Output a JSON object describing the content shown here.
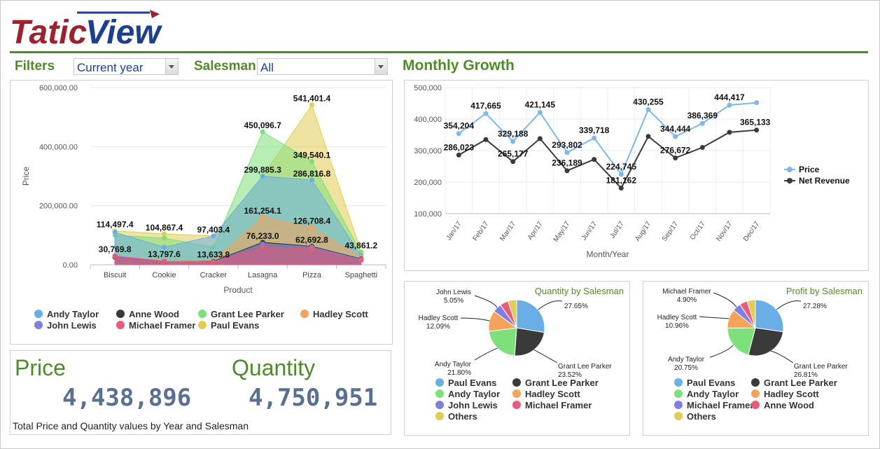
{
  "brand": {
    "logo_text": "TaticView"
  },
  "filters": {
    "label": "Filters",
    "period_value": "Current year",
    "salesman_label": "Salesman",
    "salesman_value": "All"
  },
  "colors": {
    "green": "#4f8a2b",
    "andy_taylor": "#6aaee8",
    "anne_wood": "#3a3a3a",
    "grant_lee_parker": "#7ee07a",
    "hadley_scott": "#f5a25a",
    "john_lewis": "#7f7fe0",
    "michael_framer": "#ea5a7a",
    "paul_evans": "#e1cc55"
  },
  "area_chart": {
    "chart_data": {
      "type": "area",
      "categories": [
        "Biscuit",
        "Cookie",
        "Cracker",
        "Lasagna",
        "Pizza",
        "Spaghetti"
      ],
      "xlabel": "Product",
      "ylabel": "Price",
      "ylim": [
        0,
        600000
      ],
      "yticks": [
        "0.00",
        "200,000.00",
        "400,000.00",
        "600,000.00"
      ],
      "series": [
        {
          "name": "Paul Evans",
          "color": "#e1cc55",
          "values": [
            114497.4,
            104867.4,
            97403.4,
            299885.3,
            541401.4,
            43861.2
          ]
        },
        {
          "name": "Grant Lee Parker",
          "color": "#7ee07a",
          "values": [
            100000,
            90000,
            60000,
            450096.7,
            349540.1,
            40000
          ]
        },
        {
          "name": "Andy Taylor",
          "color": "#6aaee8",
          "values": [
            110000,
            60000,
            97403.4,
            299885.3,
            286816.8,
            30000
          ]
        },
        {
          "name": "Hadley Scott",
          "color": "#f5a25a",
          "values": [
            30769.8,
            13797.6,
            13633.8,
            161254.1,
            126708.4,
            25000
          ]
        },
        {
          "name": "Anne Wood",
          "color": "#3a3a3a",
          "values": [
            25000,
            10000,
            12000,
            76233.0,
            62692.8,
            20000
          ]
        },
        {
          "name": "John Lewis",
          "color": "#7f7fe0",
          "values": [
            30000,
            12000,
            10000,
            70000,
            60000,
            18000
          ]
        },
        {
          "name": "Michael Framer",
          "color": "#ea5a7a",
          "values": [
            28000,
            11000,
            9000,
            60000,
            55000,
            15000
          ]
        }
      ],
      "data_labels": [
        {
          "cat": 0,
          "value": 114497.4,
          "text": "114,497.4"
        },
        {
          "cat": 0,
          "value": 30769.8,
          "text": "30,769.8"
        },
        {
          "cat": 1,
          "value": 104867.4,
          "text": "104,867.4"
        },
        {
          "cat": 1,
          "value": 13797.6,
          "text": "13,797.6"
        },
        {
          "cat": 2,
          "value": 97403.4,
          "text": "97,403.4"
        },
        {
          "cat": 2,
          "value": 13633.8,
          "text": "13,633.8"
        },
        {
          "cat": 3,
          "value": 450096.7,
          "text": "450,096.7"
        },
        {
          "cat": 3,
          "value": 299885.3,
          "text": "299,885.3"
        },
        {
          "cat": 3,
          "value": 161254.1,
          "text": "161,254.1"
        },
        {
          "cat": 3,
          "value": 76233.0,
          "text": "76,233.0"
        },
        {
          "cat": 4,
          "value": 541401.4,
          "text": "541,401.4"
        },
        {
          "cat": 4,
          "value": 349540.1,
          "text": "349,540.1"
        },
        {
          "cat": 4,
          "value": 286816.8,
          "text": "286,816.8"
        },
        {
          "cat": 4,
          "value": 126708.4,
          "text": "126,708.4"
        },
        {
          "cat": 4,
          "value": 62692.8,
          "text": "62,692.8"
        },
        {
          "cat": 5,
          "value": 43861.2,
          "text": "43,861.2"
        }
      ],
      "legend": [
        "Andy Taylor",
        "Anne Wood",
        "Grant Lee Parker",
        "Hadley Scott",
        "John Lewis",
        "Michael Framer",
        "Paul Evans"
      ]
    }
  },
  "kpi": {
    "price_title": "Price",
    "price_value": "4,438,896",
    "quantity_title": "Quantity",
    "quantity_value": "4,750,951",
    "footer": "Total Price and Quantity values by Year and Salesman"
  },
  "monthly_growth": {
    "title": "Monthly Growth",
    "chart_data": {
      "type": "line",
      "categories": [
        "Jan/17",
        "Feb/17",
        "Mar/17",
        "Apr/17",
        "May/17",
        "Jun/17",
        "Jul/17",
        "Aug/17",
        "Sep/17",
        "Oct/17",
        "Nov/17",
        "Dec/17"
      ],
      "xlabel": "Month/Year",
      "ylabel": "",
      "ylim": [
        100000,
        500000
      ],
      "yticks": [
        "100,000",
        "200,000",
        "300,000",
        "400,000",
        "500,000"
      ],
      "legend_position": "right",
      "series": [
        {
          "name": "Price",
          "color": "#7eb8ea",
          "values": [
            354204,
            417665,
            329188,
            421145,
            293802,
            339718,
            224745,
            430255,
            344444,
            386369,
            444417,
            452000
          ],
          "labels": [
            "354,204",
            "417,665",
            "329,188",
            "421,145",
            "293,802",
            "339,718",
            "224,745",
            "430,255",
            "344,444",
            "386,369",
            "444,417",
            ""
          ]
        },
        {
          "name": "Net Revenue",
          "color": "#3a3a3a",
          "values": [
            286023,
            335000,
            265177,
            338000,
            236189,
            272000,
            181162,
            345000,
            276672,
            310000,
            358000,
            365133
          ],
          "labels": [
            "286,023",
            "",
            "265,177",
            "",
            "236,189",
            "",
            "181,162",
            "",
            "276,672",
            "",
            "",
            "365,133"
          ]
        }
      ]
    }
  },
  "quantity_pie": {
    "title": "Quantity by Salesman",
    "chart_data": {
      "type": "pie",
      "slices": [
        {
          "name": "Paul Evans",
          "value": 27.65,
          "label": "27.65%",
          "color": "#6aaee8"
        },
        {
          "name": "Grant Lee Parker",
          "value": 23.52,
          "label": "Grant Lee Parker 23.52%",
          "color": "#3a3a3a"
        },
        {
          "name": "Andy Taylor",
          "value": 21.8,
          "label": "Andy Taylor 21.80%",
          "color": "#7ee07a"
        },
        {
          "name": "Hadley Scott",
          "value": 12.09,
          "label": "Hadley Scott 12.09%",
          "color": "#f5a25a"
        },
        {
          "name": "John Lewis",
          "value": 5.05,
          "label": "John Lewis 5.05%",
          "color": "#7f7fe0"
        },
        {
          "name": "Michael Framer",
          "value": 4.9,
          "label": "",
          "color": "#ea5a7a"
        },
        {
          "name": "Others",
          "value": 4.99,
          "label": "",
          "color": "#e1cc55"
        }
      ],
      "legend": [
        {
          "name": "Paul Evans",
          "color": "#6aaee8"
        },
        {
          "name": "Grant Lee Parker",
          "color": "#3a3a3a"
        },
        {
          "name": "Andy Taylor",
          "color": "#7ee07a"
        },
        {
          "name": "Hadley Scott",
          "color": "#f5a25a"
        },
        {
          "name": "John Lewis",
          "color": "#7f7fe0"
        },
        {
          "name": "Michael Framer",
          "color": "#ea5a7a"
        },
        {
          "name": "Others",
          "color": "#e1cc55"
        }
      ]
    }
  },
  "profit_pie": {
    "title": "Profit by Salesman",
    "chart_data": {
      "type": "pie",
      "slices": [
        {
          "name": "Paul Evans",
          "value": 27.28,
          "label": "27.28%",
          "color": "#6aaee8"
        },
        {
          "name": "Grant Lee Parker",
          "value": 26.81,
          "label": "Grant Lee Parker 26.81%",
          "color": "#3a3a3a"
        },
        {
          "name": "Andy Taylor",
          "value": 20.75,
          "label": "Andy Taylor 20.75%",
          "color": "#7ee07a"
        },
        {
          "name": "Hadley Scott",
          "value": 10.96,
          "label": "Hadley Scott 10.96%",
          "color": "#f5a25a"
        },
        {
          "name": "Michael Framer",
          "value": 4.9,
          "label": "Michael Framer 4.90%",
          "color": "#7f7fe0"
        },
        {
          "name": "Anne Wood",
          "value": 4.5,
          "label": "",
          "color": "#ea5a7a"
        },
        {
          "name": "Others",
          "value": 4.8,
          "label": "",
          "color": "#e1cc55"
        }
      ],
      "legend": [
        {
          "name": "Paul Evans",
          "color": "#6aaee8"
        },
        {
          "name": "Grant Lee Parker",
          "color": "#3a3a3a"
        },
        {
          "name": "Andy Taylor",
          "color": "#7ee07a"
        },
        {
          "name": "Hadley Scott",
          "color": "#f5a25a"
        },
        {
          "name": "Michael Framer",
          "color": "#7f7fe0"
        },
        {
          "name": "Anne Wood",
          "color": "#ea5a7a"
        },
        {
          "name": "Others",
          "color": "#e1cc55"
        }
      ]
    }
  }
}
